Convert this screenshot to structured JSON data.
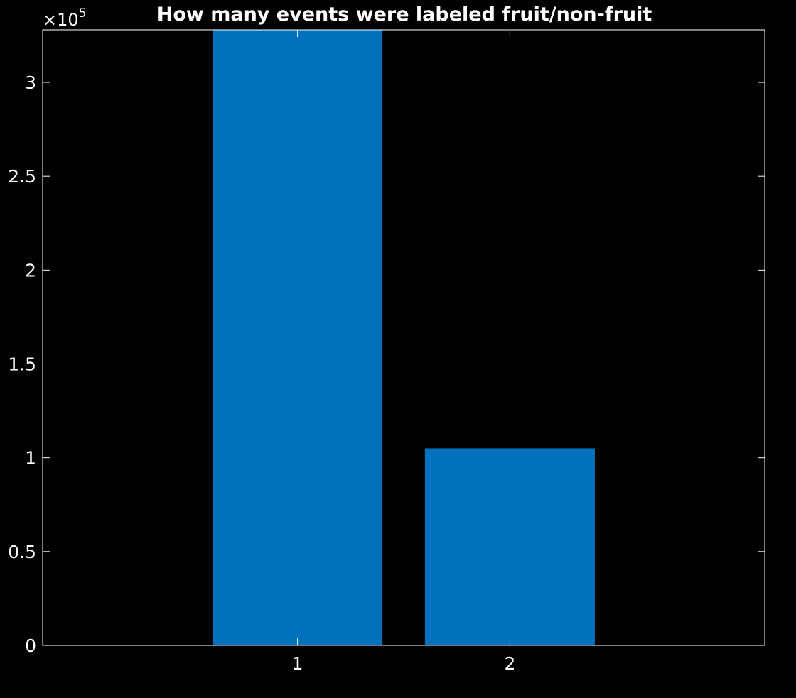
{
  "chart_data": {
    "type": "bar",
    "title": "How many events were labeled fruit/non-fruit",
    "categories": [
      "1",
      "2"
    ],
    "x": [
      1,
      2
    ],
    "values": [
      328000,
      105000
    ],
    "xlim": [
      -0.2,
      3.2
    ],
    "ylim": [
      0,
      328000
    ],
    "yticks": [
      0,
      50000,
      100000,
      150000,
      200000,
      250000,
      300000
    ],
    "ytick_labels": [
      "0",
      "0.5",
      "1",
      "1.5",
      "2",
      "2.5",
      "3"
    ],
    "y_multiplier_base": "×10",
    "y_multiplier_exponent": "5",
    "xlabel": "",
    "ylabel": "",
    "grid": false,
    "bar_color": "#0072BD",
    "background": "#000000",
    "axis_color": "#FFFFFF"
  }
}
